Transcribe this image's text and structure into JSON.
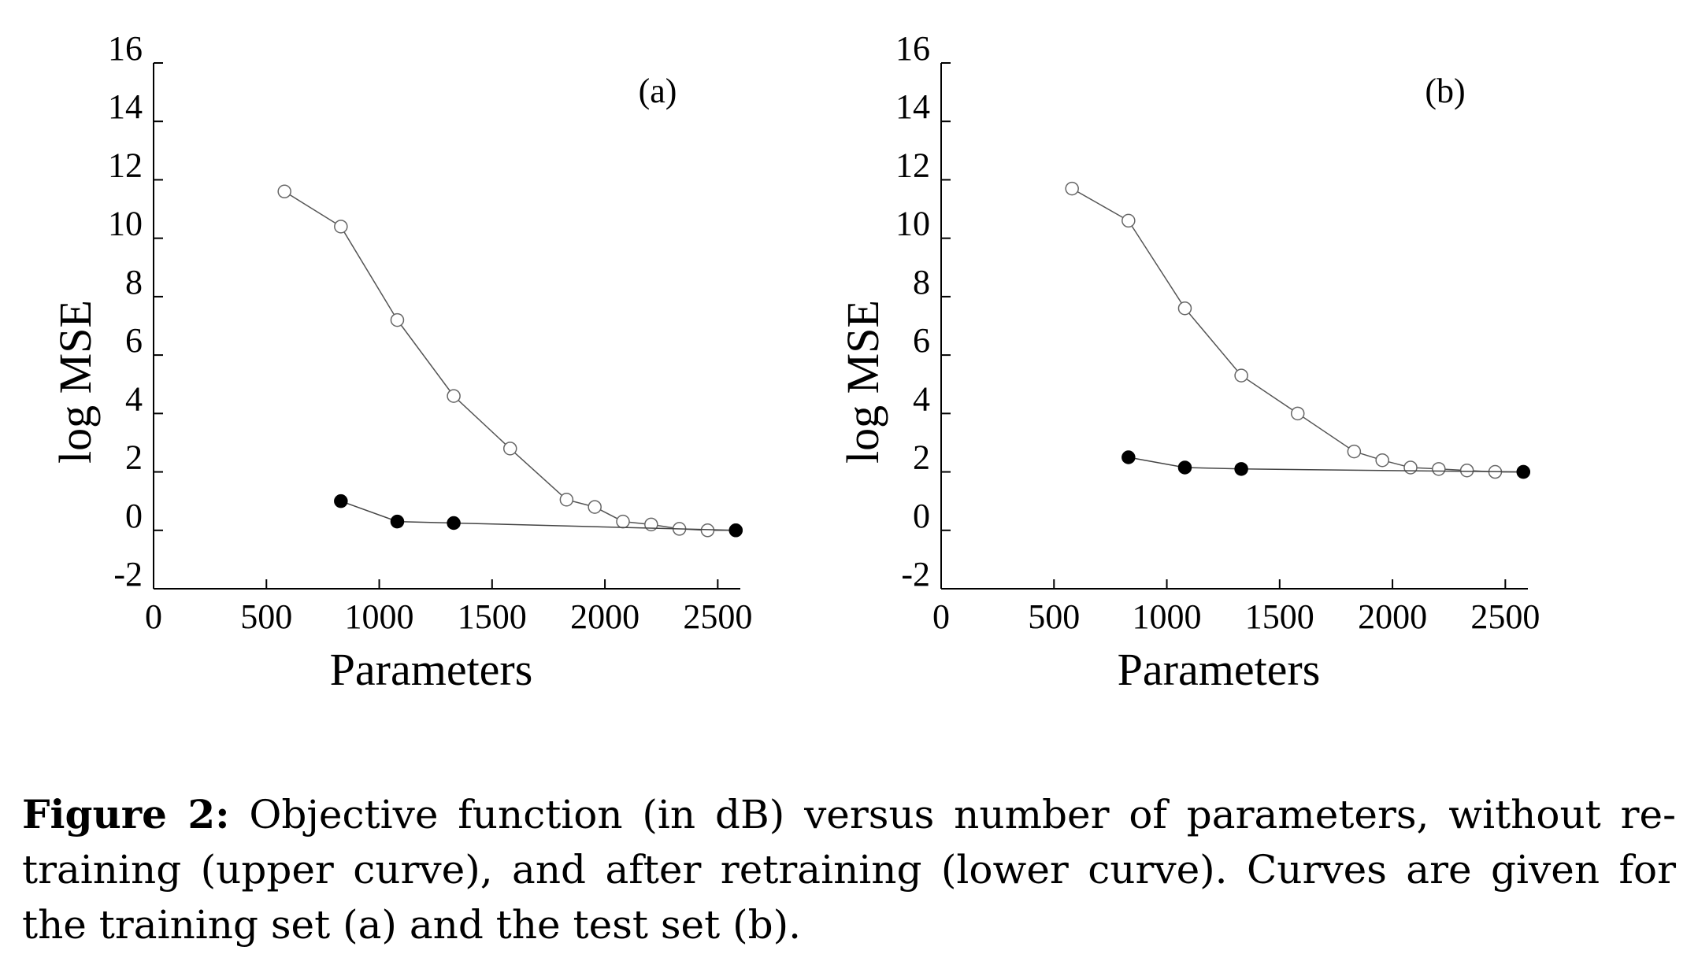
{
  "chart_data": [
    {
      "type": "line",
      "panel_label": "(a)",
      "xlabel": "Parameters",
      "ylabel": "log MSE",
      "xlim": [
        0,
        2600
      ],
      "ylim": [
        -2,
        16
      ],
      "xticks": [
        0,
        500,
        1000,
        1500,
        2000,
        2500
      ],
      "yticks": [
        -2,
        0,
        2,
        4,
        6,
        8,
        10,
        12,
        14,
        16
      ],
      "grid": false,
      "legend": "none",
      "series": [
        {
          "marker": "open-circle",
          "x": [
            580,
            830,
            1080,
            1330,
            1580,
            1830,
            1955,
            2080,
            2205,
            2330,
            2455,
            2580
          ],
          "y": [
            11.6,
            10.4,
            7.2,
            4.6,
            2.8,
            1.05,
            0.8,
            0.3,
            0.2,
            0.05,
            0.0,
            0.0
          ]
        },
        {
          "marker": "filled-circle",
          "x": [
            830,
            1080,
            1330,
            2580
          ],
          "y": [
            1.0,
            0.3,
            0.25,
            0.0
          ]
        }
      ]
    },
    {
      "type": "line",
      "panel_label": "(b)",
      "xlabel": "Parameters",
      "ylabel": "log MSE",
      "xlim": [
        0,
        2600
      ],
      "ylim": [
        -2,
        16
      ],
      "xticks": [
        0,
        500,
        1000,
        1500,
        2000,
        2500
      ],
      "yticks": [
        -2,
        0,
        2,
        4,
        6,
        8,
        10,
        12,
        14,
        16
      ],
      "grid": false,
      "legend": "none",
      "series": [
        {
          "marker": "open-circle",
          "x": [
            580,
            830,
            1080,
            1330,
            1580,
            1830,
            1955,
            2080,
            2205,
            2330,
            2455,
            2580
          ],
          "y": [
            11.7,
            10.6,
            7.6,
            5.3,
            4.0,
            2.7,
            2.4,
            2.15,
            2.1,
            2.05,
            2.0,
            2.0
          ]
        },
        {
          "marker": "filled-circle",
          "x": [
            830,
            1080,
            1330,
            2580
          ],
          "y": [
            2.5,
            2.15,
            2.1,
            2.0
          ]
        }
      ]
    }
  ],
  "caption": {
    "label": "Figure 2:",
    "text": "Objective function (in dB) versus number of parameters, without re-training (upper curve), and after retraining (lower curve). Curves are given for the training set (a) and the test set (b)."
  }
}
